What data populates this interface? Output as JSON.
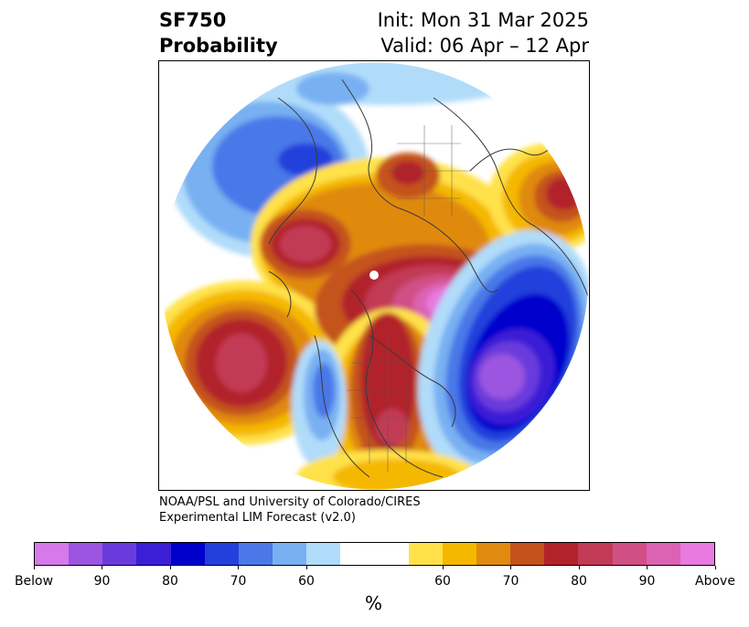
{
  "header": {
    "variable": "SF750",
    "product": "Probability",
    "init": "Init: Mon 31 Mar 2025",
    "valid": "Valid: 06 Apr – 12 Apr"
  },
  "credit": {
    "line1": "NOAA/PSL and University of Colorado/CIRES",
    "line2": "Experimental LIM Forecast (v2.0)"
  },
  "colorbar": {
    "units": "%",
    "below_colors": [
      "#d57ae8",
      "#9b55e0",
      "#6a3bdc",
      "#3a1fd6",
      "#0000cd",
      "#2440dc",
      "#4a78e8",
      "#78b0f2",
      "#b0dcfa"
    ],
    "neutral_color": "#ffffff",
    "above_colors": [
      "#ffe24a",
      "#f5b800",
      "#e08a10",
      "#c4521c",
      "#b2222a",
      "#c23a55",
      "#d05085",
      "#dc62b4",
      "#e87ae0"
    ],
    "tick_labels": [
      "Below",
      "90",
      "80",
      "70",
      "60",
      "60",
      "70",
      "80",
      "90",
      "Above"
    ]
  },
  "map": {
    "projection": "north-polar-stereographic",
    "region": "Northern Hemisphere"
  }
}
